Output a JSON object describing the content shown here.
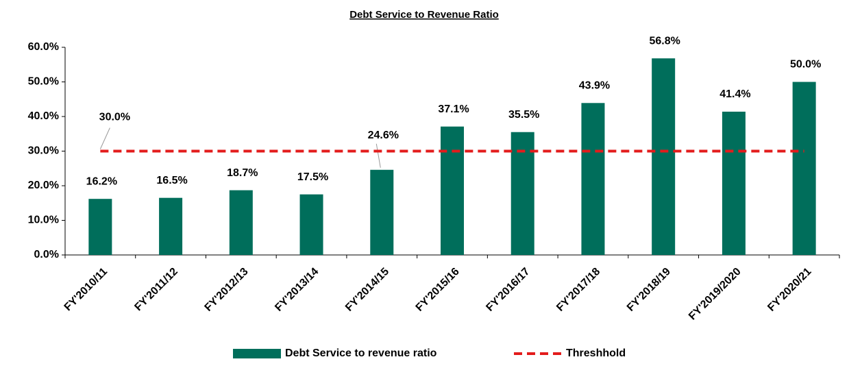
{
  "chart_data": {
    "type": "bar",
    "title": "Debt Service to Revenue Ratio",
    "categories": [
      "FY'2010/11",
      "FY'2011/12",
      "FY'2012/13",
      "FY'2013/14",
      "FY'2014/15",
      "FY'2015/16",
      "FY'2016/17",
      "FY'2017/18",
      "FY'2018/19",
      "FY'2019/2020",
      "FY'2020/21"
    ],
    "series": [
      {
        "name": "Debt Service to revenue ratio",
        "type": "bar",
        "color": "#006e5b",
        "values": [
          16.2,
          16.5,
          18.7,
          17.5,
          24.6,
          37.1,
          35.5,
          43.9,
          56.8,
          41.4,
          50.0
        ],
        "value_labels": [
          "16.2%",
          "16.5%",
          "18.7%",
          "17.5%",
          "24.6%",
          "37.1%",
          "35.5%",
          "43.9%",
          "56.8%",
          "41.4%",
          "50.0%"
        ]
      },
      {
        "name": "Threshhold",
        "type": "line",
        "color": "#e31c1c",
        "values": [
          30,
          30,
          30,
          30,
          30,
          30,
          30,
          30,
          30,
          30,
          30
        ],
        "value_labels": [
          "30.0%",
          null,
          null,
          null,
          null,
          null,
          null,
          null,
          null,
          null,
          null
        ]
      }
    ],
    "ylim": [
      0,
      60
    ],
    "yticks": [
      {
        "value": 0,
        "label": "0.0%"
      },
      {
        "value": 10,
        "label": "10.0%"
      },
      {
        "value": 20,
        "label": "20.0%"
      },
      {
        "value": 30,
        "label": "30.0%"
      },
      {
        "value": 40,
        "label": "40.0%"
      },
      {
        "value": 50,
        "label": "50.0%"
      },
      {
        "value": 60,
        "label": "60.0%"
      }
    ],
    "grid": false,
    "legend": "bottom"
  }
}
